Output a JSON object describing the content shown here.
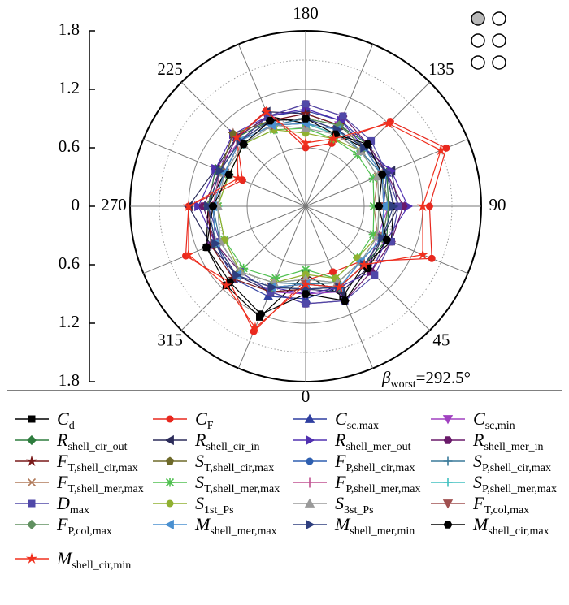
{
  "chart_data": {
    "type": "polar",
    "x": [
      0,
      22.5,
      45,
      67.5,
      90,
      112.5,
      135,
      157.5,
      180,
      202.5,
      225,
      247.5,
      270,
      292.5,
      315,
      337.5
    ],
    "xticks": [
      180,
      135,
      90,
      45,
      0,
      315,
      270,
      225
    ],
    "ylim": [
      0,
      1.8
    ],
    "yticks": [
      0,
      0.6,
      1.2,
      1.8
    ],
    "minor_grid": [
      0.9,
      1.5
    ],
    "annotation": {
      "symbol": "β",
      "sub": "worst",
      "text": "=292.5°"
    },
    "series": [
      {
        "name": "C",
        "sub": "d",
        "color": "#000000",
        "marker": "square",
        "values": [
          0.7,
          1.0,
          0.85,
          0.95,
          0.9,
          0.9,
          0.85,
          0.8,
          0.85,
          1.0,
          0.95,
          0.9,
          1.0,
          1.1,
          1.15,
          1.23
        ]
      },
      {
        "name": "C",
        "sub": "F",
        "color": "#e8281e",
        "marker": "circle",
        "values": [
          0.76,
          0.73,
          0.8,
          1.4,
          1.27,
          1.56,
          1.23,
          0.7,
          0.6,
          1.06,
          1.0,
          0.7,
          1.2,
          1.33,
          1.1,
          1.39
        ]
      },
      {
        "name": "C",
        "sub": "sc,max",
        "color": "#2f3fa0",
        "marker": "tri",
        "values": [
          0.95,
          0.9,
          0.85,
          0.85,
          0.8,
          0.9,
          0.9,
          0.95,
          0.98,
          1.0,
          1.0,
          0.95,
          1.0,
          1.0,
          1.05,
          1.0
        ]
      },
      {
        "name": "C",
        "sub": "sc,min",
        "color": "#a040c0",
        "marker": "triDown",
        "values": [
          0.9,
          0.95,
          0.9,
          0.8,
          0.85,
          0.85,
          0.9,
          0.9,
          0.95,
          0.95,
          0.95,
          1.0,
          1.0,
          1.05,
          1.0,
          0.95
        ]
      },
      {
        "name": "R",
        "sub": "shell_cir_out",
        "color": "#2e7d3e",
        "marker": "diamond",
        "values": [
          0.8,
          0.9,
          0.85,
          0.9,
          0.85,
          0.9,
          0.9,
          0.9,
          0.9,
          0.95,
          1.0,
          1.0,
          1.0,
          1.0,
          1.0,
          0.9
        ]
      },
      {
        "name": "R",
        "sub": "shell_cir_in",
        "color": "#2c2c5a",
        "marker": "triLeft",
        "values": [
          0.85,
          0.95,
          0.9,
          0.85,
          0.95,
          0.95,
          0.85,
          0.9,
          0.95,
          1.05,
          1.0,
          1.0,
          1.2,
          1.05,
          1.0,
          0.95
        ]
      },
      {
        "name": "R",
        "sub": "shell_mer_out",
        "color": "#5030b0",
        "marker": "triRight",
        "values": [
          0.9,
          0.9,
          0.95,
          0.9,
          1.05,
          0.95,
          0.85,
          0.95,
          1.0,
          1.0,
          1.05,
          1.0,
          1.1,
          1.0,
          1.0,
          0.9
        ]
      },
      {
        "name": "R",
        "sub": "shell_mer_in",
        "color": "#6a1a6a",
        "marker": "hexagon",
        "values": [
          1.0,
          1.05,
          0.95,
          0.95,
          1.0,
          0.9,
          0.9,
          1.0,
          1.05,
          1.0,
          1.0,
          0.95,
          1.05,
          1.0,
          0.95,
          0.95
        ]
      },
      {
        "name": "F",
        "sub": "T,shell_cir,max",
        "color": "#7a1a1a",
        "marker": "star",
        "values": [
          0.85,
          0.9,
          0.85,
          0.85,
          0.85,
          0.85,
          0.85,
          0.9,
          0.95,
          0.95,
          1.05,
          0.95,
          1.0,
          1.05,
          1.05,
          0.95
        ]
      },
      {
        "name": "S",
        "sub": "T,shell_cir,max",
        "color": "#6e6a2a",
        "marker": "pentagon",
        "values": [
          0.8,
          0.85,
          0.8,
          0.85,
          0.8,
          0.85,
          0.85,
          0.85,
          0.9,
          0.95,
          1.05,
          0.95,
          0.95,
          1.0,
          1.0,
          0.9
        ]
      },
      {
        "name": "F",
        "sub": "P,shell_cir,max",
        "color": "#2e5fb0",
        "marker": "circle",
        "values": [
          0.85,
          0.9,
          0.8,
          0.85,
          0.8,
          0.85,
          0.85,
          0.85,
          0.9,
          0.9,
          0.95,
          0.95,
          0.95,
          1.0,
          1.0,
          0.9
        ]
      },
      {
        "name": "S",
        "sub": "P,shell_cir,max",
        "color": "#3a7a9a",
        "marker": "plus",
        "values": [
          0.8,
          0.85,
          0.8,
          0.8,
          0.75,
          0.85,
          0.8,
          0.85,
          0.9,
          0.9,
          0.95,
          0.9,
          0.95,
          0.95,
          0.95,
          0.85
        ]
      },
      {
        "name": "F",
        "sub": "T,shell_mer,max",
        "color": "#b07a5a",
        "marker": "x",
        "values": [
          0.75,
          0.85,
          0.8,
          0.8,
          0.7,
          0.8,
          0.8,
          0.8,
          0.85,
          0.9,
          0.9,
          0.9,
          0.9,
          0.95,
          0.95,
          0.85
        ]
      },
      {
        "name": "S",
        "sub": "T,shell_mer,max",
        "color": "#50c050",
        "marker": "asterisk",
        "values": [
          0.65,
          0.8,
          0.75,
          0.75,
          0.7,
          0.75,
          0.75,
          0.75,
          0.8,
          0.85,
          0.9,
          0.85,
          0.9,
          0.9,
          0.9,
          0.8
        ]
      },
      {
        "name": "F",
        "sub": "P,shell_mer,max",
        "color": "#c05090",
        "marker": "bar",
        "values": [
          0.8,
          0.9,
          0.85,
          0.85,
          0.8,
          0.85,
          0.85,
          0.85,
          0.9,
          0.95,
          0.95,
          0.95,
          0.95,
          1.0,
          1.0,
          0.9
        ]
      },
      {
        "name": "S",
        "sub": "P,shell_mer,max",
        "color": "#40c0c0",
        "marker": "plus",
        "values": [
          0.75,
          0.85,
          0.8,
          0.8,
          0.75,
          0.8,
          0.8,
          0.8,
          0.85,
          0.9,
          0.9,
          0.9,
          0.9,
          0.95,
          0.95,
          0.85
        ]
      },
      {
        "name": "D",
        "sub": "max",
        "color": "#5048a8",
        "marker": "square",
        "values": [
          1.0,
          1.05,
          1.0,
          0.95,
          0.95,
          0.9,
          0.95,
          1.0,
          1.05,
          1.0,
          0.95,
          0.95,
          1.0,
          0.95,
          0.95,
          0.95
        ]
      },
      {
        "name": "S",
        "sub": "1st_Ps",
        "color": "#90b030",
        "marker": "circle",
        "values": [
          0.7,
          0.8,
          0.75,
          0.8,
          0.75,
          0.8,
          0.8,
          0.75,
          0.75,
          0.85,
          0.9,
          0.85,
          0.9,
          0.9,
          0.95,
          0.85
        ]
      },
      {
        "name": "S",
        "sub": "3st_Ps",
        "color": "#9a9a9a",
        "marker": "tri",
        "values": [
          0.75,
          0.85,
          0.8,
          0.8,
          0.75,
          0.8,
          0.8,
          0.8,
          0.8,
          0.9,
          0.9,
          0.9,
          0.9,
          0.95,
          0.95,
          0.85
        ]
      },
      {
        "name": "F",
        "sub": "T,col,max",
        "color": "#a05050",
        "marker": "triDown",
        "values": [
          0.8,
          0.9,
          0.85,
          0.85,
          0.8,
          0.85,
          0.85,
          0.85,
          0.85,
          0.9,
          0.95,
          0.9,
          0.95,
          1.0,
          1.0,
          0.9
        ]
      },
      {
        "name": "F",
        "sub": "P,col,max",
        "color": "#609060",
        "marker": "diamond",
        "values": [
          0.85,
          0.9,
          0.85,
          0.85,
          0.85,
          0.85,
          0.85,
          0.9,
          0.9,
          0.95,
          0.95,
          0.95,
          1.0,
          1.0,
          1.0,
          0.9
        ]
      },
      {
        "name": "M",
        "sub": "shell_mer,max",
        "color": "#4a90d0",
        "marker": "triLeft",
        "values": [
          0.8,
          0.9,
          0.8,
          0.85,
          0.8,
          0.85,
          0.85,
          0.85,
          0.85,
          0.9,
          0.95,
          0.9,
          0.95,
          1.0,
          1.0,
          0.9
        ]
      },
      {
        "name": "M",
        "sub": "shell_mer,min",
        "color": "#2e3e7e",
        "marker": "triRight",
        "values": [
          0.85,
          0.9,
          0.85,
          0.85,
          0.9,
          0.9,
          0.85,
          0.85,
          0.9,
          0.95,
          0.95,
          0.95,
          1.0,
          1.0,
          1.0,
          0.9
        ]
      },
      {
        "name": "M",
        "sub": "shell_cir,max",
        "color": "#000000",
        "marker": "hexagon",
        "values": [
          0.9,
          1.05,
          0.9,
          0.9,
          0.75,
          0.85,
          0.9,
          0.8,
          0.9,
          0.95,
          0.9,
          0.85,
          0.95,
          1.1,
          1.1,
          1.2
        ]
      },
      {
        "name": "M",
        "sub": "shell_cir,min",
        "color": "#f0301e",
        "marker": "star",
        "values": [
          0.8,
          0.9,
          0.85,
          1.3,
          1.2,
          1.5,
          1.2,
          0.75,
          0.65,
          1.05,
          1.0,
          0.75,
          1.2,
          1.3,
          1.15,
          1.35
        ]
      }
    ]
  }
}
